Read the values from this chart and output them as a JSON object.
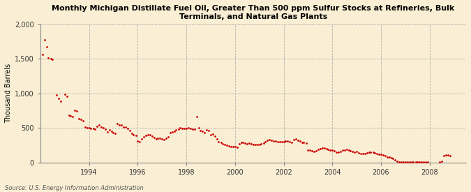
{
  "title": "Monthly Michigan Distillate Fuel Oil, Greater Than 500 ppm Sulfur Stocks at Refineries, Bulk\nTerminals, and Natural Gas Plants",
  "ylabel": "Thousand Barrels",
  "source": "Source: U.S. Energy Information Administration",
  "background_color": "#faefd4",
  "dot_color": "#cc0000",
  "ylim": [
    0,
    2000
  ],
  "yticks": [
    0,
    500,
    1000,
    1500,
    2000
  ],
  "ytick_labels": [
    "0",
    "500",
    "1,000",
    "1,500",
    "2,000"
  ],
  "xtick_years": [
    1994,
    1996,
    1998,
    2000,
    2002,
    2004,
    2006,
    2008
  ],
  "xlim": [
    1992.0,
    2009.5
  ],
  "data": [
    [
      1992.08,
      1560
    ],
    [
      1992.17,
      1780
    ],
    [
      1992.25,
      1670
    ],
    [
      1992.33,
      1510
    ],
    [
      1992.42,
      1500
    ],
    [
      1992.5,
      1490
    ],
    [
      1992.67,
      975
    ],
    [
      1992.75,
      925
    ],
    [
      1992.83,
      890
    ],
    [
      1993.0,
      990
    ],
    [
      1993.08,
      960
    ],
    [
      1993.17,
      680
    ],
    [
      1993.25,
      670
    ],
    [
      1993.33,
      660
    ],
    [
      1993.42,
      750
    ],
    [
      1993.5,
      740
    ],
    [
      1993.58,
      630
    ],
    [
      1993.67,
      625
    ],
    [
      1993.75,
      600
    ],
    [
      1993.83,
      510
    ],
    [
      1993.92,
      500
    ],
    [
      1994.0,
      500
    ],
    [
      1994.08,
      495
    ],
    [
      1994.17,
      490
    ],
    [
      1994.25,
      480
    ],
    [
      1994.33,
      520
    ],
    [
      1994.42,
      540
    ],
    [
      1994.5,
      510
    ],
    [
      1994.58,
      500
    ],
    [
      1994.67,
      485
    ],
    [
      1994.75,
      440
    ],
    [
      1994.83,
      470
    ],
    [
      1994.92,
      450
    ],
    [
      1995.0,
      430
    ],
    [
      1995.08,
      420
    ],
    [
      1995.17,
      560
    ],
    [
      1995.25,
      540
    ],
    [
      1995.33,
      540
    ],
    [
      1995.42,
      510
    ],
    [
      1995.5,
      510
    ],
    [
      1995.58,
      490
    ],
    [
      1995.67,
      460
    ],
    [
      1995.75,
      420
    ],
    [
      1995.83,
      400
    ],
    [
      1995.92,
      390
    ],
    [
      1996.0,
      310
    ],
    [
      1996.08,
      300
    ],
    [
      1996.17,
      340
    ],
    [
      1996.25,
      370
    ],
    [
      1996.33,
      390
    ],
    [
      1996.42,
      395
    ],
    [
      1996.5,
      400
    ],
    [
      1996.58,
      380
    ],
    [
      1996.67,
      360
    ],
    [
      1996.75,
      340
    ],
    [
      1996.83,
      350
    ],
    [
      1996.92,
      345
    ],
    [
      1997.0,
      340
    ],
    [
      1997.08,
      330
    ],
    [
      1997.17,
      350
    ],
    [
      1997.25,
      370
    ],
    [
      1997.33,
      430
    ],
    [
      1997.42,
      440
    ],
    [
      1997.5,
      450
    ],
    [
      1997.58,
      470
    ],
    [
      1997.67,
      480
    ],
    [
      1997.75,
      500
    ],
    [
      1997.83,
      490
    ],
    [
      1997.92,
      495
    ],
    [
      1998.0,
      490
    ],
    [
      1998.08,
      500
    ],
    [
      1998.17,
      490
    ],
    [
      1998.25,
      480
    ],
    [
      1998.33,
      480
    ],
    [
      1998.42,
      660
    ],
    [
      1998.5,
      500
    ],
    [
      1998.58,
      460
    ],
    [
      1998.67,
      450
    ],
    [
      1998.75,
      430
    ],
    [
      1998.83,
      470
    ],
    [
      1998.92,
      460
    ],
    [
      1999.0,
      400
    ],
    [
      1999.08,
      410
    ],
    [
      1999.17,
      380
    ],
    [
      1999.25,
      340
    ],
    [
      1999.33,
      300
    ],
    [
      1999.42,
      290
    ],
    [
      1999.5,
      270
    ],
    [
      1999.58,
      260
    ],
    [
      1999.67,
      250
    ],
    [
      1999.75,
      240
    ],
    [
      1999.83,
      230
    ],
    [
      1999.92,
      225
    ],
    [
      2000.0,
      230
    ],
    [
      2000.08,
      220
    ],
    [
      2000.17,
      270
    ],
    [
      2000.25,
      290
    ],
    [
      2000.33,
      290
    ],
    [
      2000.42,
      280
    ],
    [
      2000.5,
      270
    ],
    [
      2000.58,
      275
    ],
    [
      2000.67,
      265
    ],
    [
      2000.75,
      255
    ],
    [
      2000.83,
      260
    ],
    [
      2000.92,
      255
    ],
    [
      2001.0,
      260
    ],
    [
      2001.08,
      270
    ],
    [
      2001.17,
      280
    ],
    [
      2001.25,
      300
    ],
    [
      2001.33,
      315
    ],
    [
      2001.42,
      325
    ],
    [
      2001.5,
      320
    ],
    [
      2001.58,
      310
    ],
    [
      2001.67,
      305
    ],
    [
      2001.75,
      295
    ],
    [
      2001.83,
      300
    ],
    [
      2001.92,
      295
    ],
    [
      2002.0,
      300
    ],
    [
      2002.08,
      310
    ],
    [
      2002.17,
      305
    ],
    [
      2002.25,
      300
    ],
    [
      2002.33,
      290
    ],
    [
      2002.42,
      330
    ],
    [
      2002.5,
      335
    ],
    [
      2002.58,
      320
    ],
    [
      2002.67,
      310
    ],
    [
      2002.75,
      290
    ],
    [
      2002.83,
      285
    ],
    [
      2002.92,
      275
    ],
    [
      2003.0,
      180
    ],
    [
      2003.08,
      175
    ],
    [
      2003.17,
      165
    ],
    [
      2003.25,
      155
    ],
    [
      2003.33,
      170
    ],
    [
      2003.42,
      185
    ],
    [
      2003.5,
      200
    ],
    [
      2003.58,
      210
    ],
    [
      2003.67,
      210
    ],
    [
      2003.75,
      195
    ],
    [
      2003.83,
      185
    ],
    [
      2003.92,
      175
    ],
    [
      2004.0,
      175
    ],
    [
      2004.08,
      165
    ],
    [
      2004.17,
      150
    ],
    [
      2004.25,
      145
    ],
    [
      2004.33,
      160
    ],
    [
      2004.42,
      175
    ],
    [
      2004.5,
      180
    ],
    [
      2004.58,
      185
    ],
    [
      2004.67,
      175
    ],
    [
      2004.75,
      165
    ],
    [
      2004.83,
      155
    ],
    [
      2004.92,
      145
    ],
    [
      2005.0,
      155
    ],
    [
      2005.08,
      140
    ],
    [
      2005.17,
      130
    ],
    [
      2005.25,
      125
    ],
    [
      2005.33,
      130
    ],
    [
      2005.42,
      140
    ],
    [
      2005.5,
      145
    ],
    [
      2005.58,
      150
    ],
    [
      2005.67,
      150
    ],
    [
      2005.75,
      140
    ],
    [
      2005.83,
      130
    ],
    [
      2005.92,
      120
    ],
    [
      2006.0,
      120
    ],
    [
      2006.08,
      110
    ],
    [
      2006.17,
      95
    ],
    [
      2006.25,
      80
    ],
    [
      2006.33,
      75
    ],
    [
      2006.42,
      70
    ],
    [
      2006.5,
      60
    ],
    [
      2006.58,
      40
    ],
    [
      2006.67,
      20
    ],
    [
      2006.75,
      10
    ],
    [
      2006.83,
      5
    ],
    [
      2006.92,
      3
    ],
    [
      2007.0,
      5
    ],
    [
      2007.08,
      3
    ],
    [
      2007.17,
      4
    ],
    [
      2007.25,
      5
    ],
    [
      2007.33,
      4
    ],
    [
      2007.42,
      3
    ],
    [
      2007.5,
      3
    ],
    [
      2007.58,
      3
    ],
    [
      2007.67,
      2
    ],
    [
      2007.75,
      2
    ],
    [
      2007.83,
      2
    ],
    [
      2007.92,
      2
    ],
    [
      2008.42,
      5
    ],
    [
      2008.5,
      15
    ],
    [
      2008.58,
      100
    ],
    [
      2008.67,
      110
    ],
    [
      2008.75,
      105
    ],
    [
      2008.83,
      95
    ]
  ]
}
